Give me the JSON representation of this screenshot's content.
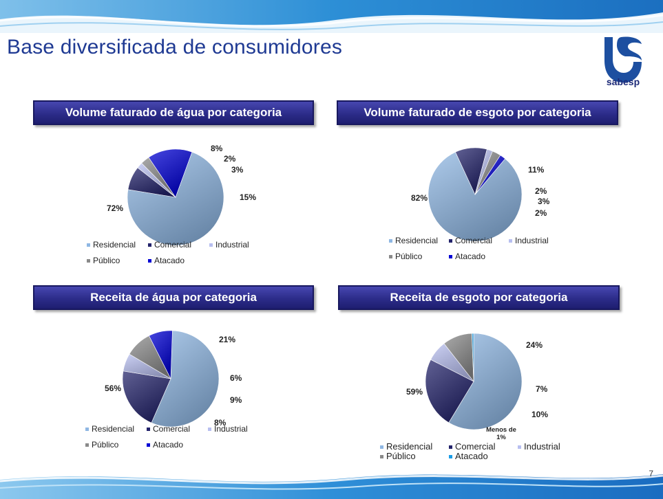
{
  "slide": {
    "title": "Base diversificada de consumidores",
    "page_number": "7",
    "logo_text": "sabesp"
  },
  "colors": {
    "Residencial": "#8fb7e3",
    "Comercial": "#23236b",
    "Industrial": "#b8bff0",
    "Público": "#8a8a8a",
    "Atacado": "#0000d4",
    "Atacado_alt": "#1a9ce6"
  },
  "chart_data": [
    {
      "type": "pie",
      "title": "Volume faturado de água por categoria",
      "categories": [
        "Residencial",
        "Comercial",
        "Industrial",
        "Público",
        "Atacado"
      ],
      "values": [
        72,
        8,
        2,
        3,
        15
      ],
      "labels": [
        "72%",
        "8%",
        "2%",
        "3%",
        "15%"
      ],
      "legend": [
        "Residencial",
        "Comercial",
        "Industrial",
        "Público",
        "Atacado"
      ]
    },
    {
      "type": "pie",
      "title": "Volume faturado de esgoto por categoria",
      "categories": [
        "Residencial",
        "Comercial",
        "Industrial",
        "Público",
        "Atacado"
      ],
      "values": [
        82,
        11,
        2,
        3,
        2
      ],
      "labels": [
        "82%",
        "11%",
        "2%",
        "3%",
        "2%"
      ],
      "legend": [
        "Residencial",
        "Comercial",
        "Industrial",
        "Público",
        "Atacado"
      ]
    },
    {
      "type": "pie",
      "title": "Receita de água por categoria",
      "categories": [
        "Residencial",
        "Comercial",
        "Industrial",
        "Público",
        "Atacado"
      ],
      "values": [
        56,
        21,
        6,
        9,
        8
      ],
      "labels": [
        "56%",
        "21%",
        "6%",
        "9%",
        "8%"
      ],
      "legend": [
        "Residencial",
        "Comercial",
        "Industrial",
        "Público",
        "Atacado"
      ]
    },
    {
      "type": "pie",
      "title": "Receita de esgoto por categoria",
      "categories": [
        "Residencial",
        "Comercial",
        "Industrial",
        "Público",
        "Atacado"
      ],
      "values": [
        59,
        24,
        7,
        10,
        0.6
      ],
      "labels": [
        "59%",
        "24%",
        "7%",
        "10%",
        "Menos de 1%"
      ],
      "legend": [
        "Residencial",
        "Comercial",
        "Industrial",
        "Público",
        "Atacado"
      ]
    }
  ]
}
